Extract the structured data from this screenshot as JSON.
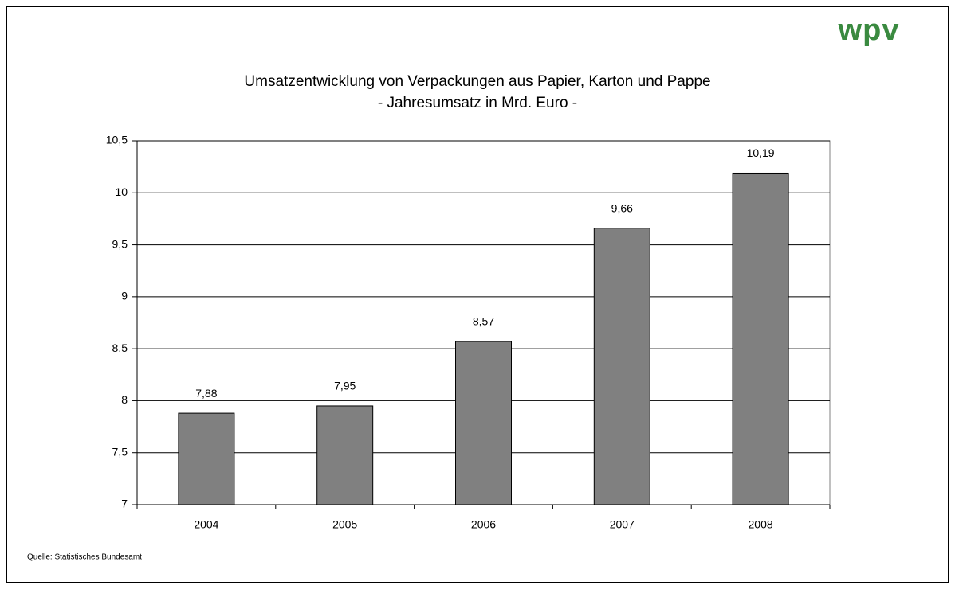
{
  "logo": "wpv",
  "source": "Quelle: Statistisches Bundesamt",
  "chart_data": {
    "type": "bar",
    "title": "Umsatzentwicklung von Verpackungen aus Papier, Karton und Pappe",
    "subtitle": "- Jahresumsatz in Mrd. Euro -",
    "categories": [
      "2004",
      "2005",
      "2006",
      "2007",
      "2008"
    ],
    "values": [
      7.88,
      7.95,
      8.57,
      9.66,
      10.19
    ],
    "value_labels": [
      "7,88",
      "7,95",
      "8,57",
      "9,66",
      "10,19"
    ],
    "color": "#808080",
    "ylim": [
      7,
      10.5
    ],
    "yticks": [
      7,
      {
        "value": 7.5,
        "label": "7,5"
      },
      8,
      {
        "value": 8.5,
        "label": "8,5"
      },
      9,
      {
        "value": 9.5,
        "label": "9,5"
      },
      10,
      {
        "value": 10.5,
        "label": "10,5"
      }
    ],
    "grid": true
  }
}
